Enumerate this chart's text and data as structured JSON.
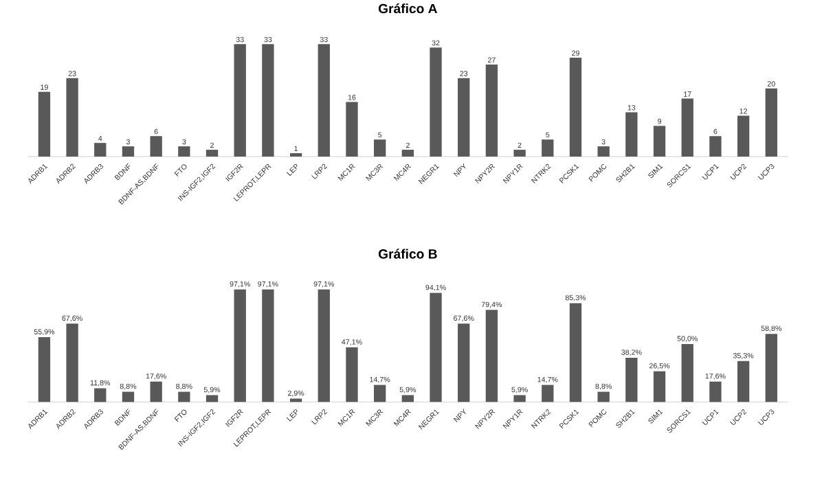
{
  "chart_data": [
    {
      "type": "bar",
      "title": "Gráfico A",
      "color": "#595959",
      "data_labels": true,
      "categories": [
        "ADRB1",
        "ADRB2",
        "ADRB3",
        "BDNF",
        "BDNF-AS,BDNF",
        "FTO",
        "INS-IGF2,IGF2",
        "IGF2R",
        "LEPROT,LEPR",
        "LEP",
        "LRP2",
        "MC1R",
        "MC3R",
        "MC4R",
        "NEGR1",
        "NPY",
        "NPY2R",
        "NPY1R",
        "NTRK2",
        "PCSK1",
        "POMC",
        "SH2B1",
        "SIM1",
        "SORCS1",
        "UCP1",
        "UCP2",
        "UCP3"
      ],
      "values": [
        19,
        23,
        4,
        3,
        6,
        3,
        2,
        33,
        33,
        1,
        33,
        16,
        5,
        2,
        32,
        23,
        27,
        2,
        5,
        29,
        3,
        13,
        9,
        17,
        6,
        12,
        20
      ]
    },
    {
      "type": "bar",
      "title": "Gráfico B",
      "color": "#595959",
      "categories": [
        "ADRB1",
        "ADRB2",
        "ADRB3",
        "BDNF",
        "BDNF-AS,BDNF",
        "FTO",
        "INS-IGF2,IGF2",
        "IGF2R",
        "LEPROT,LEPR",
        "LEP",
        "LRP2",
        "MC1R",
        "MC3R",
        "MC4R",
        "NEGR1",
        "NPY",
        "NPY2R",
        "NPY1R",
        "NTRK2",
        "PCSK1",
        "POMC",
        "SH2B1",
        "SIM1",
        "SORCS1",
        "UCP1",
        "UCP2",
        "UCP3"
      ],
      "values": [
        55.9,
        67.6,
        11.8,
        8.8,
        17.6,
        8.8,
        5.9,
        97.1,
        97.1,
        2.9,
        97.1,
        47.1,
        14.7,
        5.9,
        94.1,
        67.6,
        79.4,
        5.9,
        14.7,
        85.3,
        8.8,
        38.2,
        26.5,
        50.0,
        17.6,
        35.3,
        58.8
      ],
      "value_labels": [
        "55,9%",
        "67,6%",
        "11,8%",
        "8,8%",
        "17,6%",
        "8,8%",
        "5,9%",
        "97,1%",
        "97,1%",
        "2,9%",
        "97,1%",
        "47,1%",
        "14,7%",
        "5,9%",
        "94,1%",
        "67,6%",
        "79,4%",
        "5,9%",
        "14,7%",
        "85,3%",
        "8,8%",
        "38,2%",
        "26,5%",
        "50,0%",
        "17,6%",
        "35,3%",
        "58,8%"
      ]
    }
  ]
}
